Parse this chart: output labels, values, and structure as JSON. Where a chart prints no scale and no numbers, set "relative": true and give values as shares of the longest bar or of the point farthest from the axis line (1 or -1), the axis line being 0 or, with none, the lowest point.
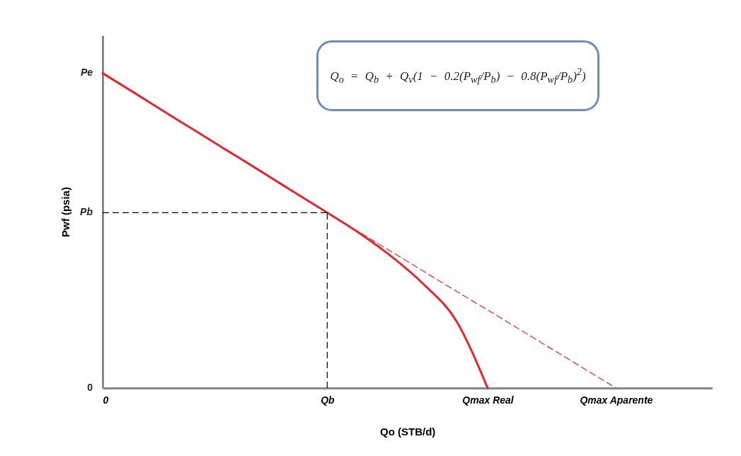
{
  "chart_data": {
    "type": "line",
    "relative": true,
    "xlabel": "Qo (STB/d)",
    "ylabel": "Pwf (psia)",
    "categories": [
      "0",
      null,
      null,
      null,
      null,
      null,
      null,
      "Qb",
      null,
      null,
      null,
      null,
      "Qmax Real",
      null,
      null,
      null,
      "Qmax Aparente",
      null,
      null,
      null
    ],
    "series": [
      {
        "color": "#e8252b",
        "values": [
          1,
          0.937,
          0.873,
          0.81,
          0.747,
          0.684,
          0.62,
          0.557,
          0.492,
          0.418,
          0.33,
          0.217,
          0,
          null,
          null,
          null,
          null,
          null,
          null,
          null
        ]
      },
      {
        "color": "#e8252b",
        "line_style": "dashed",
        "values": [
          null,
          null,
          null,
          null,
          null,
          null,
          null,
          0.557,
          0.495,
          0.433,
          0.371,
          0.309,
          0.248,
          0.186,
          0.124,
          0.062,
          0,
          null,
          null,
          null
        ]
      }
    ],
    "ref_lines": [
      {
        "axis": "y",
        "value": 0.557,
        "label": "Pb",
        "color": "#000000",
        "line_style": "dashed"
      },
      {
        "axis": "x",
        "value": "Qb",
        "color": "#000000",
        "line_style": "dashed"
      }
    ],
    "annotations": [
      "Q$_{o}$ = Q$_{b}$ + Q$_{v}$(1 − 0.2(P$_{wf}$/P$_{b}$) − 0.8(P$_{wf}$/P$_{b}$)$^{2}$)",
      "Pe",
      "0"
    ],
    "marker": "none"
  }
}
